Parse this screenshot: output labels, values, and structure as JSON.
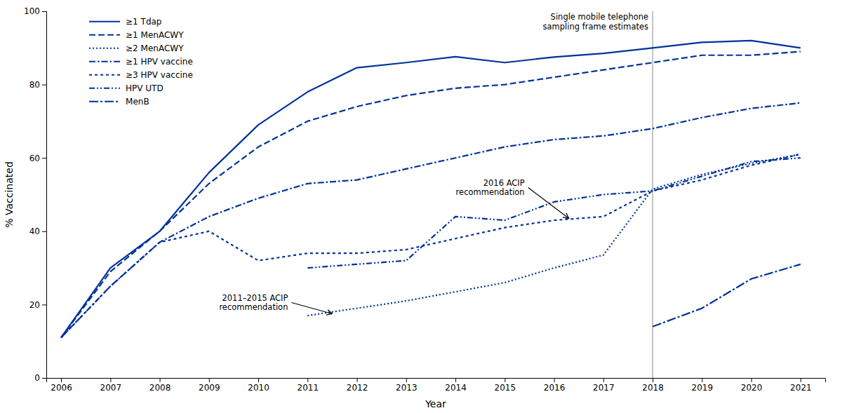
{
  "chart_data": {
    "type": "line",
    "xlabel": "Year",
    "ylabel": "% Vaccinated",
    "color": "#003399",
    "xlim": [
      2005.7,
      2021.5
    ],
    "ylim": [
      0,
      100
    ],
    "xticks": [
      2006,
      2007,
      2008,
      2009,
      2010,
      2011,
      2012,
      2013,
      2014,
      2015,
      2016,
      2017,
      2018,
      2019,
      2020,
      2021
    ],
    "yticks": [
      0,
      20,
      40,
      60,
      80,
      100
    ],
    "grid": false,
    "legend": "upper left",
    "series": [
      {
        "name": "≥1 Tdap",
        "line_style": "solid",
        "x": [
          2006,
          2007,
          2008,
          2009,
          2010,
          2011,
          2012,
          2013,
          2014,
          2015,
          2016,
          2017,
          2018,
          2019,
          2020,
          2021
        ],
        "values": [
          11,
          30,
          40,
          56,
          69,
          78,
          84.6,
          86,
          87.6,
          86,
          87.5,
          88.5,
          90.0,
          91.5,
          92.0,
          90.0
        ]
      },
      {
        "name": "≥1 MenACWY",
        "line_style": "dashed",
        "x": [
          2006,
          2007,
          2008,
          2009,
          2010,
          2011,
          2012,
          2013,
          2014,
          2015,
          2016,
          2017,
          2018,
          2019,
          2020,
          2021
        ],
        "values": [
          11,
          29,
          40,
          53,
          63,
          70,
          74,
          77,
          79,
          80,
          82,
          84,
          86,
          88,
          88,
          89
        ]
      },
      {
        "name": "≥2 MenACWY",
        "line_style": "dotted",
        "x": [
          2011,
          2012,
          2013,
          2014,
          2015,
          2016,
          2017,
          2018,
          2019,
          2020,
          2021
        ],
        "values": [
          17.0,
          19.0,
          21.0,
          23.5,
          26.0,
          30.0,
          33.5,
          51.5,
          55.5,
          58.5,
          61.0
        ]
      },
      {
        "name": "≥1 HPV vaccine",
        "line_style": "dash-dot",
        "x": [
          2006,
          2007,
          2008,
          2009,
          2010,
          2011,
          2012,
          2013,
          2014,
          2015,
          2016,
          2017,
          2018,
          2019,
          2020,
          2021
        ],
        "values": [
          11,
          25,
          37,
          44,
          49,
          53,
          54,
          57,
          60,
          63,
          65,
          66,
          68,
          71,
          73.5,
          75
        ]
      },
      {
        "name": "≥3 HPV vaccine",
        "line_style": "short-dashed",
        "x": [
          2006,
          2007,
          2008,
          2009,
          2010,
          2011,
          2012,
          2013,
          2014,
          2015,
          2016,
          2017,
          2018,
          2019,
          2020,
          2021
        ],
        "values": [
          11,
          25,
          37,
          40,
          32,
          34,
          34,
          35,
          38,
          41,
          43,
          44,
          51,
          54,
          58,
          61
        ]
      },
      {
        "name": "HPV UTD",
        "line_style": "dash-dot-dot",
        "x": [
          2011,
          2012,
          2013,
          2014,
          2015,
          2016,
          2017,
          2018,
          2019,
          2020,
          2021
        ],
        "values": [
          30,
          31,
          32,
          44,
          43,
          48,
          50,
          51,
          55,
          59,
          60
        ]
      },
      {
        "name": "MenB",
        "line_style": "long-dash-dot",
        "x": [
          2018,
          2019,
          2020,
          2021
        ],
        "values": [
          14,
          19,
          27,
          31
        ]
      }
    ],
    "vline": {
      "x": 2018,
      "label": "Single mobile telephone\nsampling frame estimates"
    },
    "annotations": [
      {
        "text": "2011–2015 ACIP\nrecommendation",
        "x": 2011.5,
        "y": 17.5
      },
      {
        "text": "2016 ACIP\nrecommendation",
        "x": 2016.3,
        "y": 43.5
      }
    ]
  }
}
